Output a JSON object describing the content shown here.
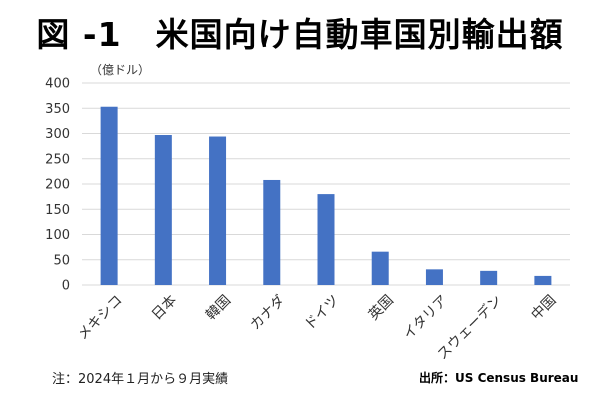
{
  "chart_data": {
    "type": "bar",
    "title": "図 -1　米国向け自動車国別輸出額",
    "unit_label": "（億ドル）",
    "categories": [
      "メキシコ",
      "日本",
      "韓国",
      "カナダ",
      "ドイツ",
      "英国",
      "イタリア",
      "スウェーデン",
      "中国"
    ],
    "values": [
      353,
      297,
      294,
      208,
      180,
      66,
      31,
      28,
      18
    ],
    "ylim": [
      0,
      400
    ],
    "yticks": [
      0,
      50,
      100,
      150,
      200,
      250,
      300,
      350,
      400
    ],
    "grid": true,
    "legend": false,
    "bar_color": "#4472c4",
    "grid_color": "#d9d9d9"
  },
  "footnote": "注：2024年１月から９月実績",
  "source": "出所：US Census Bureau"
}
